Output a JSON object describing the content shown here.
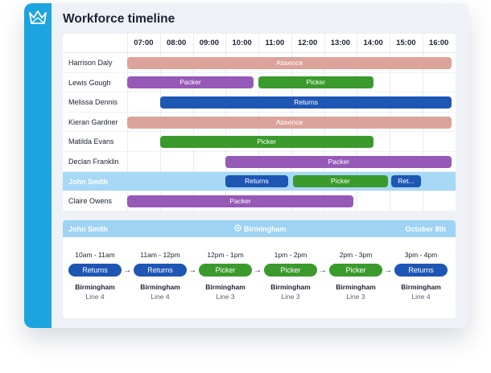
{
  "app": {
    "title": "Workforce timeline",
    "logo_icon": "crown-icon"
  },
  "colors": {
    "sidebar": "#1ba4e0",
    "absence": "#dca39a",
    "packer": "#9659b7",
    "picker": "#3b9a2c",
    "returns": "#1e56b4",
    "highlight_row": "#a7d8f5",
    "detail_header": "#9fd3f3"
  },
  "timeline": {
    "hours": [
      "07:00",
      "08:00",
      "09:00",
      "10:00",
      "11:00",
      "12:00",
      "13:00",
      "14:00",
      "15:00",
      "16:00"
    ],
    "rows": [
      {
        "name": "Harrison Daly",
        "shifts": [
          {
            "label": "Absence",
            "role": "absence",
            "start": 7.0,
            "end": 16.9
          }
        ]
      },
      {
        "name": "Lewis Gough",
        "shifts": [
          {
            "label": "Packer",
            "role": "packer",
            "start": 7.0,
            "end": 10.85
          },
          {
            "label": "Picker",
            "role": "picker",
            "start": 11.0,
            "end": 14.5
          }
        ]
      },
      {
        "name": "Melissa Dennis",
        "shifts": [
          {
            "label": "Returns",
            "role": "returns",
            "start": 8.0,
            "end": 16.9
          }
        ]
      },
      {
        "name": "Kieran Gardner",
        "shifts": [
          {
            "label": "Absence",
            "role": "absence",
            "start": 7.0,
            "end": 16.9
          }
        ]
      },
      {
        "name": "Matilda Evans",
        "shifts": [
          {
            "label": "Picker",
            "role": "picker",
            "start": 8.0,
            "end": 14.5
          }
        ]
      },
      {
        "name": "Declan Franklin",
        "shifts": [
          {
            "label": "Packer",
            "role": "packer",
            "start": 10.0,
            "end": 16.9
          }
        ]
      },
      {
        "name": "John Smith",
        "highlighted": true,
        "shifts": [
          {
            "label": "Returns",
            "role": "returns",
            "start": 10.0,
            "end": 11.9
          },
          {
            "label": "Picker",
            "role": "picker",
            "start": 12.05,
            "end": 14.95
          },
          {
            "label": "Ret...",
            "role": "returns",
            "start": 15.05,
            "end": 15.95
          }
        ]
      },
      {
        "name": "Claire Owens",
        "shifts": [
          {
            "label": "Packer",
            "role": "packer",
            "start": 7.0,
            "end": 13.9
          }
        ]
      }
    ]
  },
  "detail": {
    "person": "John Smith",
    "location_icon": "location-pin-icon",
    "location": "Birmingham",
    "date": "October 8th",
    "steps": [
      {
        "time": "10am - 11am",
        "role": "returns",
        "label": "Returns",
        "city": "Birmingham",
        "line": "Line 4"
      },
      {
        "time": "11am - 12pm",
        "role": "returns",
        "label": "Returns",
        "city": "Birmingham",
        "line": "Line 4"
      },
      {
        "time": "12pm - 1pm",
        "role": "picker",
        "label": "Picker",
        "city": "Birmingham",
        "line": "Line 3"
      },
      {
        "time": "1pm - 2pm",
        "role": "picker",
        "label": "Picker",
        "city": "Birmingham",
        "line": "Line 3"
      },
      {
        "time": "2pm - 3pm",
        "role": "picker",
        "label": "Picker",
        "city": "Birmingham",
        "line": "Line 3"
      },
      {
        "time": "3pm - 4pm",
        "role": "returns",
        "label": "Returns",
        "city": "Birmingham",
        "line": "Line 4"
      }
    ],
    "arrow_symbol": "→"
  }
}
